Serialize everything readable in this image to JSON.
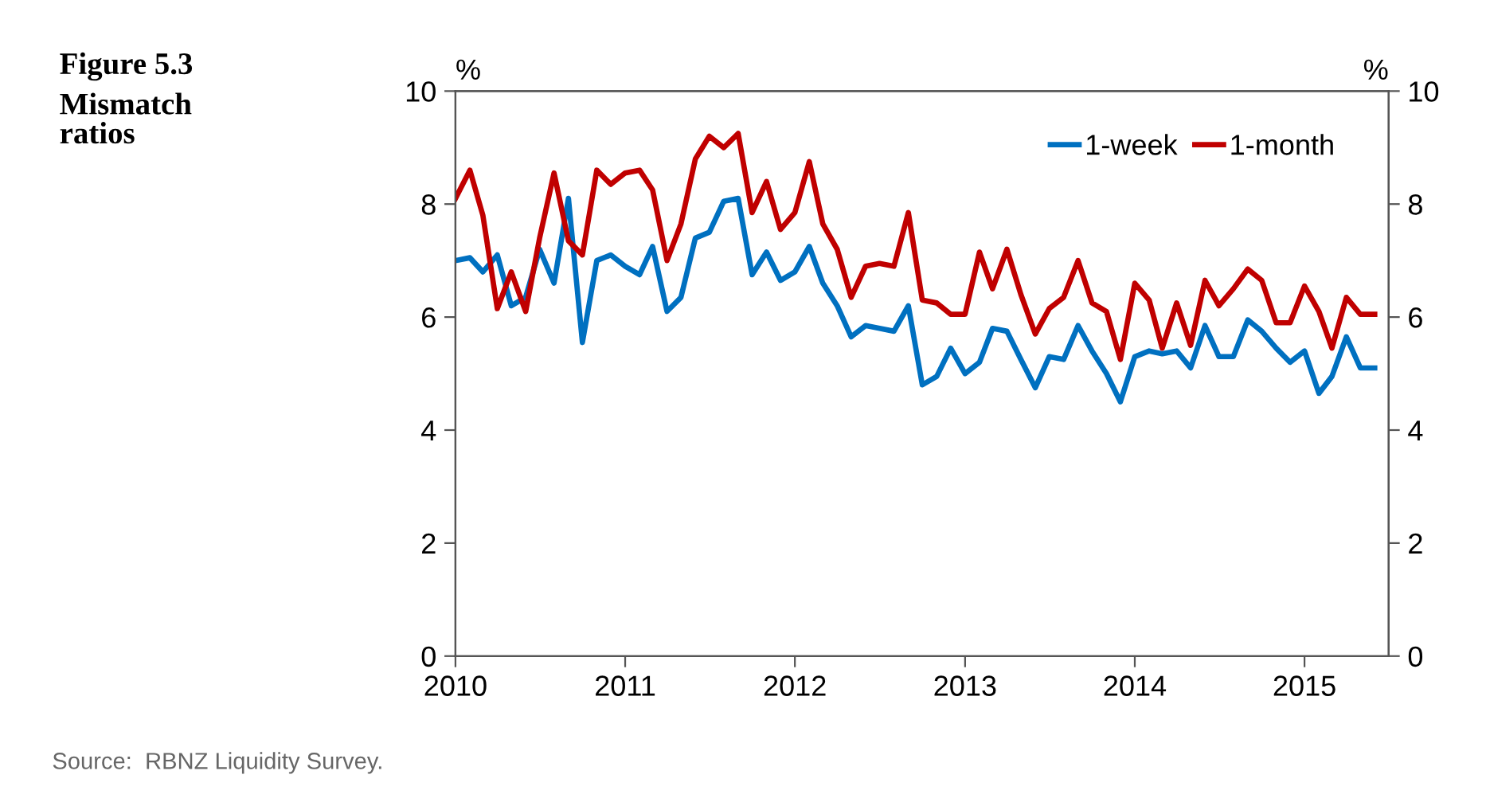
{
  "chart_data": {
    "type": "line",
    "title": "Figure 5.3",
    "subtitle": "Mismatch ratios",
    "ylabel": "%",
    "y2label": "%",
    "annotations": [
      "Source:  RBNZ Liquidity Survey."
    ],
    "x": [
      "2010-01",
      "2010-02",
      "2010-03",
      "2010-04",
      "2010-05",
      "2010-06",
      "2010-07",
      "2010-08",
      "2010-09",
      "2010-10",
      "2010-11",
      "2010-12",
      "2011-01",
      "2011-02",
      "2011-03",
      "2011-04",
      "2011-05",
      "2011-06",
      "2011-07",
      "2011-08",
      "2011-09",
      "2011-10",
      "2011-11",
      "2011-12",
      "2012-01",
      "2012-02",
      "2012-03",
      "2012-04",
      "2012-05",
      "2012-06",
      "2012-07",
      "2012-08",
      "2012-09",
      "2012-10",
      "2012-11",
      "2012-12",
      "2013-01",
      "2013-02",
      "2013-03",
      "2013-04",
      "2013-05",
      "2013-06",
      "2013-07",
      "2013-08",
      "2013-09",
      "2013-10",
      "2013-11",
      "2013-12",
      "2014-01",
      "2014-02",
      "2014-03",
      "2014-04",
      "2014-05",
      "2014-06",
      "2014-07",
      "2014-08",
      "2014-09",
      "2014-10",
      "2014-11",
      "2014-12",
      "2015-01",
      "2015-02",
      "2015-03",
      "2015-04",
      "2015-05",
      "2015-06"
    ],
    "series": [
      {
        "name": "1-week",
        "color": "#0070c0",
        "values": [
          7.0,
          7.05,
          6.8,
          7.1,
          6.2,
          6.35,
          7.2,
          6.6,
          8.1,
          5.55,
          7.0,
          7.1,
          6.9,
          6.75,
          7.25,
          6.1,
          6.35,
          7.4,
          7.5,
          8.05,
          8.1,
          6.75,
          7.15,
          6.65,
          6.8,
          7.25,
          6.6,
          6.2,
          5.65,
          5.85,
          5.8,
          5.75,
          6.2,
          4.8,
          4.95,
          5.45,
          5.0,
          5.2,
          5.8,
          5.75,
          5.25,
          4.75,
          5.3,
          5.25,
          5.85,
          5.4,
          5.0,
          4.5,
          5.3,
          5.4,
          5.35,
          5.4,
          5.1,
          5.85,
          5.3,
          5.3,
          5.95,
          5.75,
          5.45,
          5.2,
          5.4,
          4.65,
          4.95,
          5.65,
          5.1,
          5.1
        ]
      },
      {
        "name": "1-month",
        "color": "#c00000",
        "values": [
          8.1,
          8.6,
          7.8,
          6.15,
          6.8,
          6.1,
          7.4,
          8.55,
          7.35,
          7.1,
          8.6,
          8.35,
          8.55,
          8.6,
          8.25,
          7.0,
          7.65,
          8.8,
          9.2,
          9.0,
          9.25,
          7.85,
          8.4,
          7.55,
          7.85,
          8.75,
          7.65,
          7.2,
          6.35,
          6.9,
          6.95,
          6.9,
          7.85,
          6.3,
          6.25,
          6.05,
          6.05,
          7.15,
          6.5,
          7.2,
          6.4,
          5.7,
          6.15,
          6.35,
          7.0,
          6.25,
          6.1,
          5.25,
          6.6,
          6.3,
          5.45,
          6.25,
          5.5,
          6.65,
          6.2,
          6.5,
          6.85,
          6.65,
          5.9,
          5.9,
          6.55,
          6.1,
          5.45,
          6.35,
          6.05,
          6.05
        ]
      }
    ],
    "xlim": [
      "2010-01-01",
      "2015-07-01"
    ],
    "xticks": [
      {
        "value": "2010-01-01",
        "label": "2010"
      },
      {
        "value": "2011-01-01",
        "label": "2011"
      },
      {
        "value": "2012-01-01",
        "label": "2012"
      },
      {
        "value": "2013-01-01",
        "label": "2013"
      },
      {
        "value": "2014-01-01",
        "label": "2014"
      },
      {
        "value": "2015-01-01",
        "label": "2015"
      }
    ],
    "ylim": [
      0,
      10
    ],
    "yticks": [
      0,
      2,
      4,
      6,
      8,
      10
    ],
    "y2lim": [
      0,
      10
    ],
    "y2ticks": [
      0,
      2,
      4,
      6,
      8,
      10
    ],
    "grid": false,
    "legend": "top right",
    "marker": "none",
    "line_style": "solid"
  }
}
